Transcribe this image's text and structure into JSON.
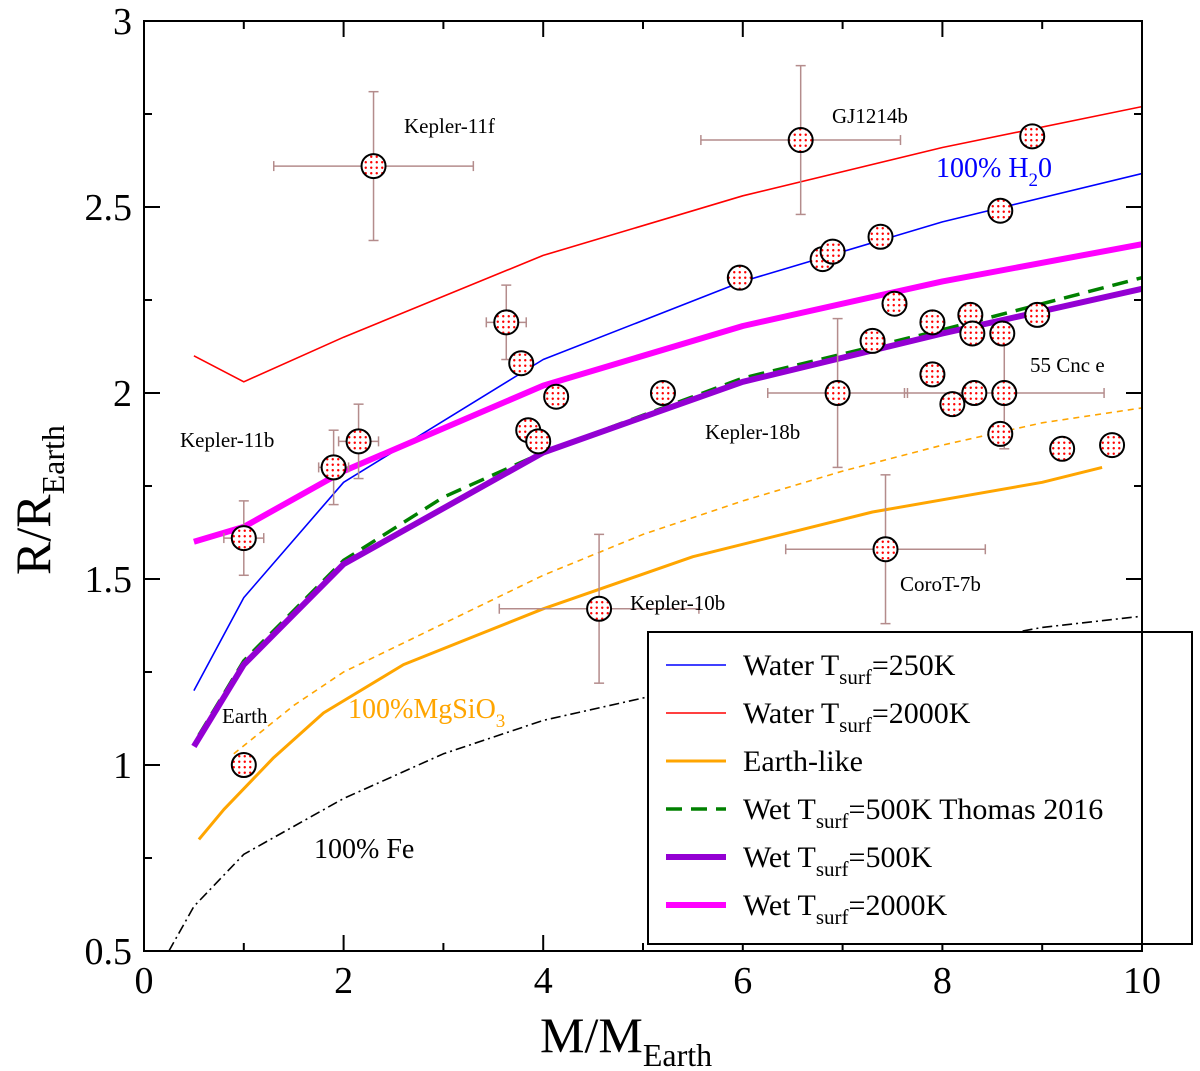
{
  "chart_data": {
    "type": "line",
    "xlabel": {
      "main": "M/M",
      "sub": "Earth"
    },
    "ylabel": {
      "main": "R/R",
      "sub": "Earth"
    },
    "xlim": [
      0,
      10
    ],
    "ylim": [
      0.5,
      3
    ],
    "x_ticks": [
      "0",
      "2",
      "4",
      "6",
      "8",
      "10"
    ],
    "y_ticks": [
      "0.5",
      "1",
      "1.5",
      "2",
      "2.5",
      "3"
    ],
    "series": [
      {
        "id": "water250",
        "name": "Water T",
        "sub": "surf",
        "suffix": "=250K",
        "color": "#0000ff",
        "width": 1.6,
        "dash": "",
        "x": [
          0.5,
          1.0,
          2.0,
          4.0,
          6.0,
          8.0,
          10.0
        ],
        "y": [
          1.2,
          1.45,
          1.76,
          2.09,
          2.3,
          2.46,
          2.59
        ]
      },
      {
        "id": "water2000",
        "name": "Water T",
        "sub": "surf",
        "suffix": "=2000K",
        "color": "#ff0000",
        "width": 1.6,
        "dash": "",
        "x": [
          0.5,
          1.0,
          2.0,
          4.0,
          6.0,
          8.0,
          10.0
        ],
        "y": [
          2.1,
          2.03,
          2.15,
          2.37,
          2.53,
          2.66,
          2.77
        ]
      },
      {
        "id": "earthlike",
        "name": "Earth-like",
        "sub": "",
        "suffix": "",
        "color": "#ffa500",
        "width": 3,
        "dash": "",
        "x": [
          0.55,
          0.8,
          1.3,
          1.8,
          2.6,
          4.0,
          5.5,
          7.3,
          9.0,
          9.6
        ],
        "y": [
          0.8,
          0.88,
          1.02,
          1.14,
          1.27,
          1.42,
          1.56,
          1.68,
          1.76,
          1.8
        ]
      },
      {
        "id": "wet500thomas",
        "name": "Wet T",
        "sub": "surf",
        "suffix": "=500K Thomas 2016",
        "color": "#008000",
        "width": 3.5,
        "dash": "16,9",
        "x": [
          0.55,
          1.0,
          2.0,
          3.0,
          4.0,
          5.0,
          6.0,
          8.0,
          10.0
        ],
        "y": [
          1.08,
          1.28,
          1.55,
          1.72,
          1.84,
          1.94,
          2.04,
          2.17,
          2.31
        ]
      },
      {
        "id": "wet500",
        "name": "Wet T",
        "sub": "surf",
        "suffix": "=500K",
        "color": "#9400d3",
        "width": 6,
        "dash": "",
        "x": [
          0.5,
          1.0,
          2.0,
          4.0,
          6.0,
          8.0,
          10.0
        ],
        "y": [
          1.05,
          1.27,
          1.54,
          1.84,
          2.03,
          2.16,
          2.28
        ]
      },
      {
        "id": "wet2000",
        "name": "Wet T",
        "sub": "surf",
        "suffix": "=2000K",
        "color": "#ff00ff",
        "width": 6,
        "dash": "",
        "x": [
          0.5,
          1.0,
          2.0,
          4.0,
          6.0,
          8.0,
          10.0
        ],
        "y": [
          1.6,
          1.64,
          1.79,
          2.02,
          2.18,
          2.3,
          2.4
        ]
      }
    ],
    "extra_curves": [
      {
        "id": "mgsio3",
        "name": "100%MgSiO3",
        "color": "#ffa500",
        "width": 1.6,
        "dash": "6,5",
        "x": [
          0.9,
          1.5,
          2.0,
          3.0,
          4.0,
          5.0,
          6.0,
          7.0,
          8.0,
          9.0,
          10.0
        ],
        "y": [
          1.03,
          1.16,
          1.25,
          1.38,
          1.51,
          1.62,
          1.71,
          1.79,
          1.86,
          1.92,
          1.96
        ]
      },
      {
        "id": "fe",
        "name": "100% Fe",
        "color": "#000000",
        "width": 1.6,
        "dash": "10,4,2,4",
        "x": [
          0.25,
          0.5,
          1.0,
          2.0,
          3.0,
          4.0,
          5.0,
          6.0,
          7.0,
          8.0,
          9.0,
          10.0
        ],
        "y": [
          0.5,
          0.62,
          0.76,
          0.91,
          1.03,
          1.12,
          1.18,
          1.23,
          1.28,
          1.32,
          1.37,
          1.4
        ]
      }
    ],
    "planets": [
      {
        "x": 1.0,
        "y": 1.0,
        "xerr": 0,
        "yerr": 0
      },
      {
        "x": 1.0,
        "y": 1.61,
        "xerr": 0.2,
        "yerr": 0.1
      },
      {
        "x": 1.9,
        "y": 1.8,
        "xerr": 0.15,
        "yerr": 0.1
      },
      {
        "x": 2.15,
        "y": 1.87,
        "xerr": 0.2,
        "yerr": 0.1
      },
      {
        "x": 2.3,
        "y": 2.61,
        "xerr": 1.0,
        "yerr": 0.2
      },
      {
        "x": 3.63,
        "y": 2.19,
        "xerr": 0.2,
        "yerr": 0.1
      },
      {
        "x": 3.78,
        "y": 2.08,
        "xerr": 0,
        "yerr": 0
      },
      {
        "x": 3.85,
        "y": 1.9,
        "xerr": 0,
        "yerr": 0
      },
      {
        "x": 3.95,
        "y": 1.87,
        "xerr": 0,
        "yerr": 0
      },
      {
        "x": 4.13,
        "y": 1.99,
        "xerr": 0,
        "yerr": 0
      },
      {
        "x": 4.56,
        "y": 1.42,
        "xerr": 1.0,
        "yerr": 0.2
      },
      {
        "x": 5.2,
        "y": 2.0,
        "xerr": 0,
        "yerr": 0
      },
      {
        "x": 5.97,
        "y": 2.31,
        "xerr": 0,
        "yerr": 0
      },
      {
        "x": 6.58,
        "y": 2.68,
        "xerr": 1.0,
        "yerr": 0.2
      },
      {
        "x": 6.8,
        "y": 2.36,
        "xerr": 0,
        "yerr": 0
      },
      {
        "x": 6.9,
        "y": 2.38,
        "xerr": 0,
        "yerr": 0
      },
      {
        "x": 6.95,
        "y": 2.0,
        "xerr": 0.7,
        "yerr": 0.2
      },
      {
        "x": 7.3,
        "y": 2.14,
        "xerr": 0,
        "yerr": 0
      },
      {
        "x": 7.38,
        "y": 2.42,
        "xerr": 0,
        "yerr": 0
      },
      {
        "x": 7.43,
        "y": 1.58,
        "xerr": 1.0,
        "yerr": 0.2
      },
      {
        "x": 7.52,
        "y": 2.24,
        "xerr": 0,
        "yerr": 0
      },
      {
        "x": 7.9,
        "y": 2.19,
        "xerr": 0,
        "yerr": 0
      },
      {
        "x": 7.9,
        "y": 2.05,
        "xerr": 0,
        "yerr": 0
      },
      {
        "x": 8.1,
        "y": 1.97,
        "xerr": 0,
        "yerr": 0
      },
      {
        "x": 8.28,
        "y": 2.21,
        "xerr": 0,
        "yerr": 0
      },
      {
        "x": 8.3,
        "y": 2.16,
        "xerr": 0,
        "yerr": 0
      },
      {
        "x": 8.32,
        "y": 2.0,
        "xerr": 0,
        "yerr": 0
      },
      {
        "x": 8.58,
        "y": 2.49,
        "xerr": 0,
        "yerr": 0
      },
      {
        "x": 8.58,
        "y": 1.89,
        "xerr": 0,
        "yerr": 0
      },
      {
        "x": 8.62,
        "y": 2.0,
        "xerr": 1.0,
        "yerr": 0.15
      },
      {
        "x": 8.6,
        "y": 2.16,
        "xerr": 0,
        "yerr": 0
      },
      {
        "x": 8.9,
        "y": 2.69,
        "xerr": 0,
        "yerr": 0
      },
      {
        "x": 8.95,
        "y": 2.21,
        "xerr": 0,
        "yerr": 0
      },
      {
        "x": 9.2,
        "y": 1.85,
        "xerr": 0,
        "yerr": 0
      },
      {
        "x": 9.7,
        "y": 1.86,
        "xerr": 0,
        "yerr": 0
      }
    ],
    "annotations": {
      "kepler11f": "Kepler-11f",
      "gj1214b": "GJ1214b",
      "kepler11b": "Kepler-11b",
      "cnc55e": "55 Cnc e",
      "kepler18b": "Kepler-18b",
      "corot7b": "CoroT-7b",
      "kepler10b": "Kepler-10b",
      "earth": "Earth",
      "h2o_main": "100% H",
      "h2o_sub": "2",
      "h2o_end": "0",
      "mgsio3_main": "100%MgSiO",
      "mgsio3_sub": "3",
      "fe": "100% Fe"
    },
    "colors": {
      "errorbar": "#b48c8c",
      "marker_dot": "#ff0000",
      "h2o_label": "#0000ff",
      "mgsio3_label": "#ffa500"
    },
    "legend_position": "bottom-right"
  }
}
